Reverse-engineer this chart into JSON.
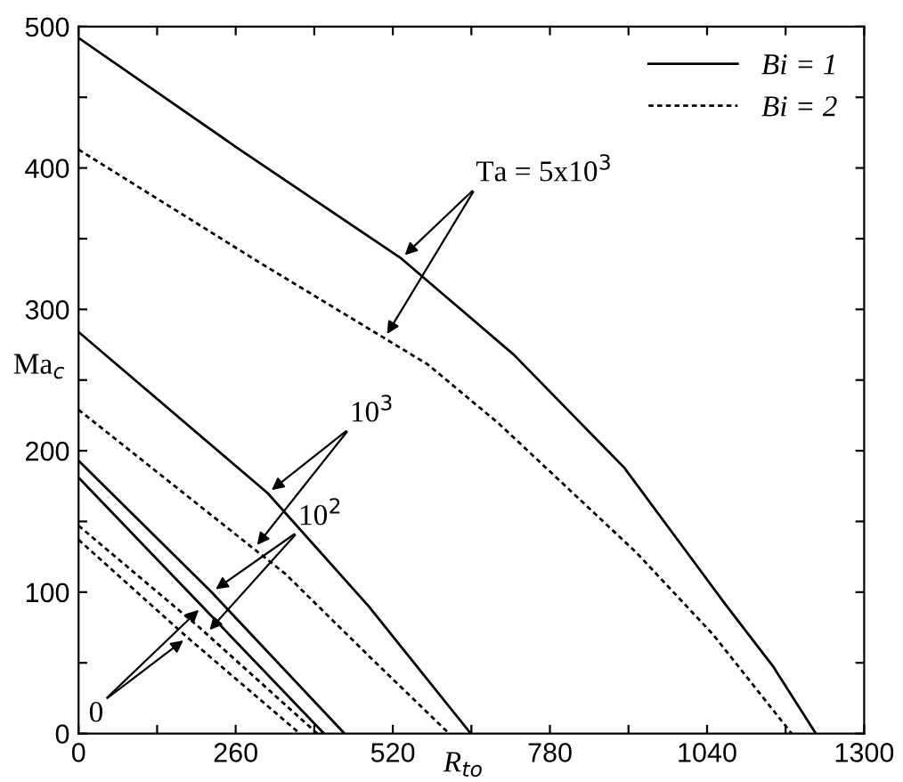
{
  "chart_data": {
    "type": "line",
    "xlabel": "R$_{to}$",
    "ylabel": "Ma$_{c}$",
    "xlim": [
      0,
      1300
    ],
    "ylim": [
      0,
      500
    ],
    "xticks": [
      0,
      {
        "value": 130,
        "label": null
      },
      260,
      {
        "value": 390,
        "label": null
      },
      520,
      {
        "value": 650,
        "label": null
      },
      780,
      {
        "value": 910,
        "label": null
      },
      1040,
      {
        "value": 1170,
        "label": null
      },
      1300
    ],
    "yticks": [
      0,
      {
        "value": 50,
        "label": null
      },
      100,
      {
        "value": 150,
        "label": null
      },
      200,
      {
        "value": 250,
        "label": null
      },
      300,
      {
        "value": 350,
        "label": null
      },
      400,
      {
        "value": 450,
        "label": null
      },
      500
    ],
    "legend": "top right",
    "grid": false,
    "marker": "none",
    "series": [
      {
        "name": "Bi = 1",
        "color": "#000000",
        "line_style": "solid",
        "x": [
          0,
          260,
          534,
          720,
          903,
          1071,
          1150,
          1220
        ],
        "values": [
          492,
          415,
          336,
          268,
          188,
          91,
          47,
          0
        ]
      },
      {
        "name": "Bi = 2",
        "color": "#000000",
        "line_style": "dotted",
        "x": [
          0,
          300,
          578,
          696,
          923,
          1050,
          1180
        ],
        "values": [
          413,
          333,
          261,
          219,
          128,
          70,
          0
        ]
      },
      {
        "color": "#000000",
        "line_style": "solid",
        "x": [
          0,
          313,
          480,
          649
        ],
        "values": [
          284,
          170,
          90,
          0
        ]
      },
      {
        "color": "#000000",
        "line_style": "dotted",
        "x": [
          0,
          342,
          480,
          613
        ],
        "values": [
          229,
          113,
          55,
          0
        ]
      },
      {
        "color": "#000000",
        "line_style": "solid",
        "x": [
          0,
          220,
          440
        ],
        "values": [
          193,
          100,
          0
        ]
      },
      {
        "color": "#000000",
        "line_style": "dotted",
        "x": [
          0,
          200,
          395
        ],
        "values": [
          147,
          75,
          0
        ]
      },
      {
        "color": "#000000",
        "line_style": "solid",
        "x": [
          0,
          200,
          406
        ],
        "values": [
          181,
          92,
          0
        ]
      },
      {
        "color": "#000000",
        "line_style": "dotted",
        "x": [
          0,
          180,
          366
        ],
        "values": [
          137,
          68,
          0
        ]
      }
    ],
    "annotations": [
      {
        "text": "Ta = 5x10$^{3}$",
        "x": 534,
        "y": 336
      },
      {
        "text": "10$^{3}$",
        "x": 313,
        "y": 170
      },
      {
        "text": "10$^{2}$",
        "x": 220,
        "y": 100
      },
      {
        "text": "0",
        "x": 180,
        "y": 68
      }
    ]
  }
}
